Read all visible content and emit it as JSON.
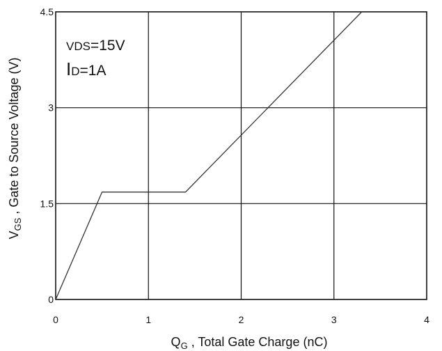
{
  "chart_data": {
    "type": "line",
    "xlabel": {
      "symbol": "Q",
      "subscript": "G",
      "text": " , Total Gate Charge (nC)"
    },
    "ylabel": {
      "symbol": "V",
      "subscript": "GS",
      "text": " , Gate to Source Voltage (V)"
    },
    "xlim": [
      0,
      4
    ],
    "ylim": [
      0,
      4.5
    ],
    "x_ticks": [
      0,
      1,
      2,
      3,
      4
    ],
    "x_tick_labels": [
      "0",
      "1",
      "2",
      "3",
      "4"
    ],
    "y_ticks": [
      0,
      1.5,
      3,
      4.5
    ],
    "y_tick_labels": [
      "0",
      "1.5",
      "3",
      "4.5"
    ],
    "grid": true,
    "series": [
      {
        "x": [
          0,
          0.5,
          1.4,
          3.3
        ],
        "y": [
          0,
          1.68,
          1.68,
          4.5
        ],
        "color": "#333333"
      }
    ],
    "annotations": [
      {
        "main": "V",
        "sub": "DS",
        "rest": "=15V"
      },
      {
        "main": "I",
        "sub": "D",
        "rest": "=1A"
      }
    ]
  },
  "colors": {
    "axis": "#111111",
    "grid": "#111111",
    "line": "#333333"
  }
}
